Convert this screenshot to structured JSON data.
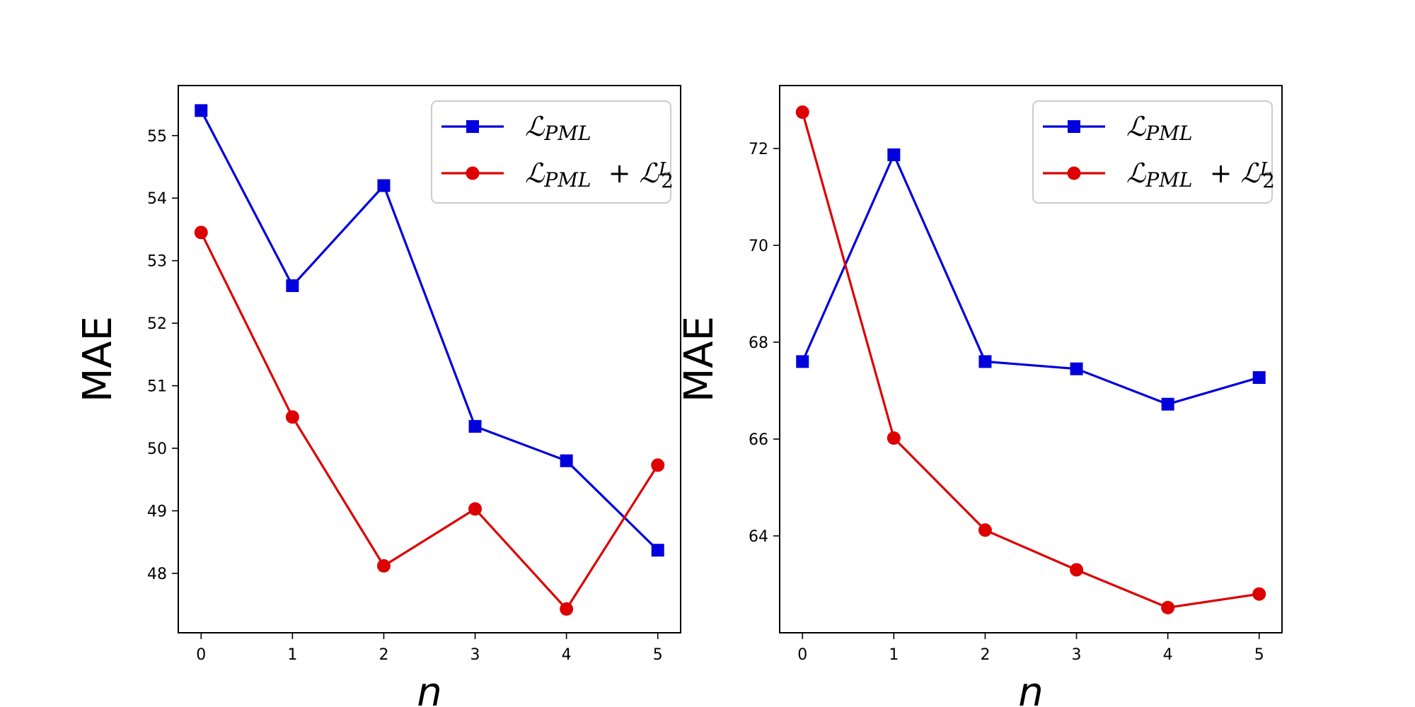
{
  "chart_data": [
    {
      "type": "line",
      "x": [
        0,
        1,
        2,
        3,
        4,
        5
      ],
      "xlabel": "n",
      "ylabel": "MAE",
      "xlim": [
        -0.25,
        5.25
      ],
      "ylim": [
        47.05,
        55.8
      ],
      "xticks": [
        "0",
        "1",
        "2",
        "3",
        "4",
        "5"
      ],
      "yticks": [
        48,
        49,
        50,
        51,
        52,
        53,
        54,
        55
      ],
      "grid": false,
      "legend_position": "top-right",
      "series": [
        {
          "name": "ℒPML",
          "color": "#0000dd",
          "marker": "square",
          "values": [
            55.4,
            52.6,
            54.2,
            50.35,
            49.8,
            48.37
          ]
        },
        {
          "name": "ℒPML + ℒ2L",
          "color": "#dd0000",
          "marker": "circle",
          "values": [
            53.45,
            50.5,
            48.12,
            49.03,
            47.43,
            49.73
          ]
        }
      ]
    },
    {
      "type": "line",
      "x": [
        0,
        1,
        2,
        3,
        4,
        5
      ],
      "xlabel": "n",
      "ylabel": "MAE",
      "xlim": [
        -0.25,
        5.25
      ],
      "ylim": [
        62.0,
        73.3
      ],
      "xticks": [
        "0",
        "1",
        "2",
        "3",
        "4",
        "5"
      ],
      "yticks": [
        64,
        66,
        68,
        70,
        72
      ],
      "grid": false,
      "legend_position": "top-right",
      "series": [
        {
          "name": "ℒPML",
          "color": "#0000dd",
          "marker": "square",
          "values": [
            67.6,
            71.87,
            67.6,
            67.45,
            66.72,
            67.27
          ]
        },
        {
          "name": "ℒPML + ℒ2L",
          "color": "#dd0000",
          "marker": "circle",
          "values": [
            72.75,
            66.02,
            64.12,
            63.3,
            62.52,
            62.8
          ]
        }
      ]
    }
  ],
  "legend_labels": {
    "calligraphic_L": "ℒ",
    "pml_subscript": "PML",
    "plus": "+",
    "l2_subscript": "2",
    "l2_superscript": "L"
  }
}
